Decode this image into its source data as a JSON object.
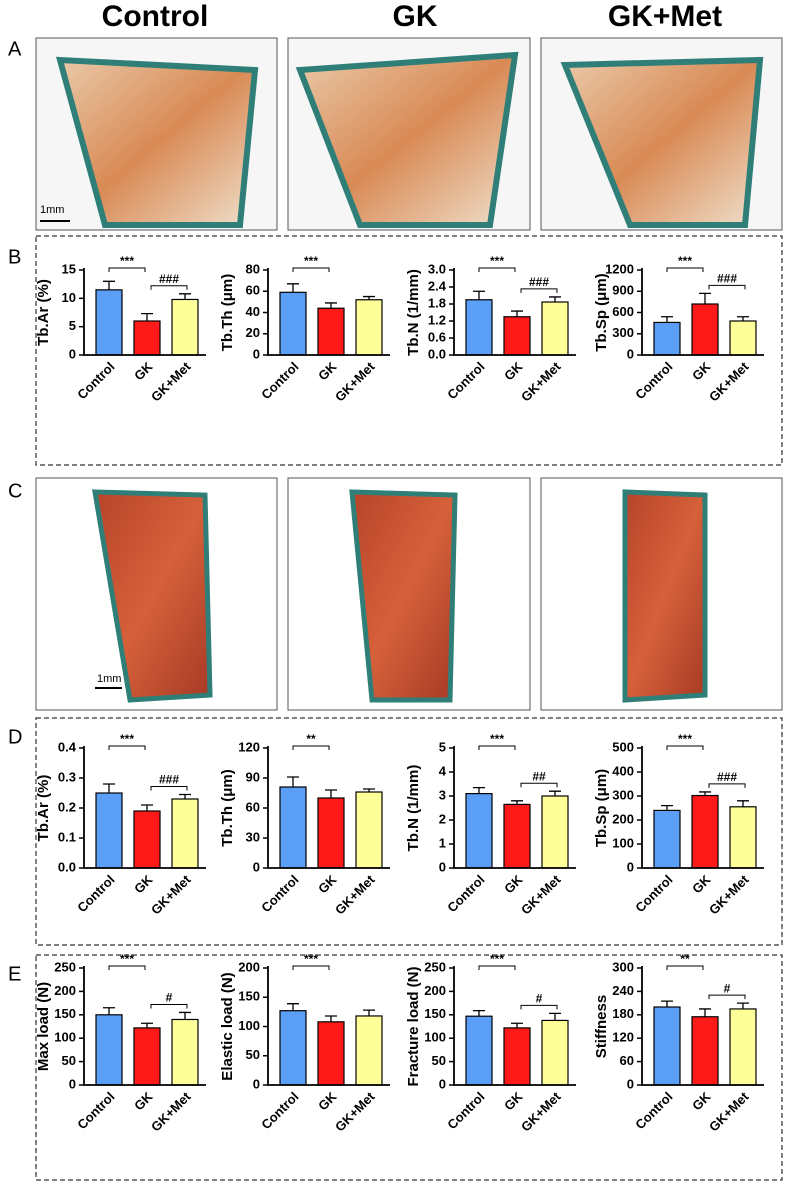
{
  "column_headers": [
    "Control",
    "GK",
    "GK+Met"
  ],
  "panel_labels": [
    "A",
    "B",
    "C",
    "D",
    "E"
  ],
  "scale_bars": [
    "1mm",
    "1mm"
  ],
  "chart_data": [
    {
      "type": "bar",
      "ylabel": "Tb.Ar (%)",
      "categories": [
        "Control",
        "GK",
        "GK+Met"
      ],
      "values": [
        11.5,
        6,
        9.8
      ],
      "errors": [
        1.5,
        1.3,
        1.0
      ],
      "colors": [
        "#5b9ef5",
        "#ff1a1a",
        "#ffff99"
      ],
      "ylim": [
        0,
        15
      ],
      "yticks": [
        0,
        5,
        10,
        15
      ],
      "annotations": [
        {
          "label": "***",
          "between": [
            "Control",
            "GK"
          ]
        },
        {
          "label": "###",
          "between": [
            "GK",
            "GK+Met"
          ]
        }
      ]
    },
    {
      "type": "bar",
      "ylabel": "Tb.Th (μm)",
      "categories": [
        "Control",
        "GK",
        "GK+Met"
      ],
      "values": [
        59,
        44,
        52
      ],
      "errors": [
        8,
        5,
        3
      ],
      "colors": [
        "#5b9ef5",
        "#ff1a1a",
        "#ffff99"
      ],
      "ylim": [
        0,
        80
      ],
      "yticks": [
        0,
        20,
        40,
        60,
        80
      ],
      "annotations": [
        {
          "label": "***",
          "between": [
            "Control",
            "GK"
          ]
        }
      ]
    },
    {
      "type": "bar",
      "ylabel": "Tb.N (1/mm)",
      "categories": [
        "Control",
        "GK",
        "GK+Met"
      ],
      "values": [
        1.95,
        1.35,
        1.87
      ],
      "errors": [
        0.3,
        0.2,
        0.18
      ],
      "colors": [
        "#5b9ef5",
        "#ff1a1a",
        "#ffff99"
      ],
      "ylim": [
        0,
        3
      ],
      "yticks": [
        {
          "value": 0,
          "label": "0.0"
        },
        0.6,
        1.2,
        1.8,
        2.4,
        {
          "value": 3,
          "label": "3.0"
        }
      ],
      "annotations": [
        {
          "label": "***",
          "between": [
            "Control",
            "GK"
          ]
        },
        {
          "label": "###",
          "between": [
            "GK",
            "GK+Met"
          ]
        }
      ]
    },
    {
      "type": "bar",
      "ylabel": "Tb.Sp (μm)",
      "categories": [
        "Control",
        "GK",
        "GK+Met"
      ],
      "values": [
        460,
        720,
        480
      ],
      "errors": [
        80,
        150,
        60
      ],
      "colors": [
        "#5b9ef5",
        "#ff1a1a",
        "#ffff99"
      ],
      "ylim": [
        0,
        1200
      ],
      "yticks": [
        0,
        300,
        600,
        900,
        1200
      ],
      "annotations": [
        {
          "label": "***",
          "between": [
            "Control",
            "GK"
          ]
        },
        {
          "label": "###",
          "between": [
            "GK",
            "GK+Met"
          ]
        }
      ]
    },
    {
      "type": "bar",
      "ylabel": "Tb.Ar (%)",
      "categories": [
        "Control",
        "GK",
        "GK+Met"
      ],
      "values": [
        0.25,
        0.19,
        0.23
      ],
      "errors": [
        0.03,
        0.02,
        0.015
      ],
      "colors": [
        "#5b9ef5",
        "#ff1a1a",
        "#ffff99"
      ],
      "ylim": [
        0,
        0.4
      ],
      "yticks": [
        {
          "value": 0,
          "label": "0.0"
        },
        0.1,
        0.2,
        0.3,
        0.4
      ],
      "annotations": [
        {
          "label": "***",
          "between": [
            "Control",
            "GK"
          ]
        },
        {
          "label": "###",
          "between": [
            "GK",
            "GK+Met"
          ]
        }
      ]
    },
    {
      "type": "bar",
      "ylabel": "Tb.Th (μm)",
      "categories": [
        "Control",
        "GK",
        "GK+Met"
      ],
      "values": [
        81,
        70,
        76
      ],
      "errors": [
        10,
        8,
        3
      ],
      "colors": [
        "#5b9ef5",
        "#ff1a1a",
        "#ffff99"
      ],
      "ylim": [
        0,
        120
      ],
      "yticks": [
        0,
        30,
        60,
        90,
        120
      ],
      "annotations": [
        {
          "label": "**",
          "between": [
            "Control",
            "GK"
          ]
        }
      ]
    },
    {
      "type": "bar",
      "ylabel": "Tb.N (1/mm)",
      "categories": [
        "Control",
        "GK",
        "GK+Met"
      ],
      "values": [
        3.1,
        2.65,
        3.0
      ],
      "errors": [
        0.25,
        0.15,
        0.2
      ],
      "colors": [
        "#5b9ef5",
        "#ff1a1a",
        "#ffff99"
      ],
      "ylim": [
        0,
        5
      ],
      "yticks": [
        0,
        1,
        2,
        3,
        4,
        5
      ],
      "annotations": [
        {
          "label": "***",
          "between": [
            "Control",
            "GK"
          ]
        },
        {
          "label": "##",
          "between": [
            "GK",
            "GK+Met"
          ]
        }
      ]
    },
    {
      "type": "bar",
      "ylabel": "Tb.Sp (μm)",
      "categories": [
        "Control",
        "GK",
        "GK+Met"
      ],
      "values": [
        240,
        302,
        255
      ],
      "errors": [
        20,
        15,
        25
      ],
      "colors": [
        "#5b9ef5",
        "#ff1a1a",
        "#ffff99"
      ],
      "ylim": [
        0,
        500
      ],
      "yticks": [
        0,
        100,
        200,
        300,
        400,
        500
      ],
      "annotations": [
        {
          "label": "***",
          "between": [
            "Control",
            "GK"
          ]
        },
        {
          "label": "###",
          "between": [
            "GK",
            "GK+Met"
          ]
        }
      ]
    },
    {
      "type": "bar",
      "ylabel": "Max load (N)",
      "categories": [
        "Control",
        "GK",
        "GK+Met"
      ],
      "values": [
        150,
        122,
        140
      ],
      "errors": [
        15,
        10,
        15
      ],
      "colors": [
        "#5b9ef5",
        "#ff1a1a",
        "#ffff99"
      ],
      "ylim": [
        0,
        250
      ],
      "yticks": [
        0,
        50,
        100,
        150,
        200,
        250
      ],
      "annotations": [
        {
          "label": "***",
          "between": [
            "Control",
            "GK"
          ]
        },
        {
          "label": "#",
          "between": [
            "GK",
            "GK+Met"
          ]
        }
      ]
    },
    {
      "type": "bar",
      "ylabel": "Elastic load (N)",
      "categories": [
        "Control",
        "GK",
        "GK+Met"
      ],
      "values": [
        127,
        108,
        118
      ],
      "errors": [
        12,
        10,
        10
      ],
      "colors": [
        "#5b9ef5",
        "#ff1a1a",
        "#ffff99"
      ],
      "ylim": [
        0,
        200
      ],
      "yticks": [
        0,
        50,
        100,
        150,
        200
      ],
      "annotations": [
        {
          "label": "***",
          "between": [
            "Control",
            "GK"
          ]
        }
      ]
    },
    {
      "type": "bar",
      "ylabel": "Fracture load (N)",
      "categories": [
        "Control",
        "GK",
        "GK+Met"
      ],
      "values": [
        147,
        122,
        138
      ],
      "errors": [
        12,
        10,
        15
      ],
      "colors": [
        "#5b9ef5",
        "#ff1a1a",
        "#ffff99"
      ],
      "ylim": [
        0,
        250
      ],
      "yticks": [
        0,
        50,
        100,
        150,
        200,
        250
      ],
      "annotations": [
        {
          "label": "***",
          "between": [
            "Control",
            "GK"
          ]
        },
        {
          "label": "#",
          "between": [
            "GK",
            "GK+Met"
          ]
        }
      ]
    },
    {
      "type": "bar",
      "ylabel": "Stiffness",
      "categories": [
        "Control",
        "GK",
        "GK+Met"
      ],
      "values": [
        200,
        175,
        195
      ],
      "errors": [
        15,
        20,
        15
      ],
      "colors": [
        "#5b9ef5",
        "#ff1a1a",
        "#ffff99"
      ],
      "ylim": [
        0,
        300
      ],
      "yticks": [
        0,
        60,
        120,
        180,
        240,
        300
      ],
      "annotations": [
        {
          "label": "**",
          "between": [
            "Control",
            "GK"
          ]
        },
        {
          "label": "#",
          "between": [
            "GK",
            "GK+Met"
          ]
        }
      ]
    }
  ]
}
